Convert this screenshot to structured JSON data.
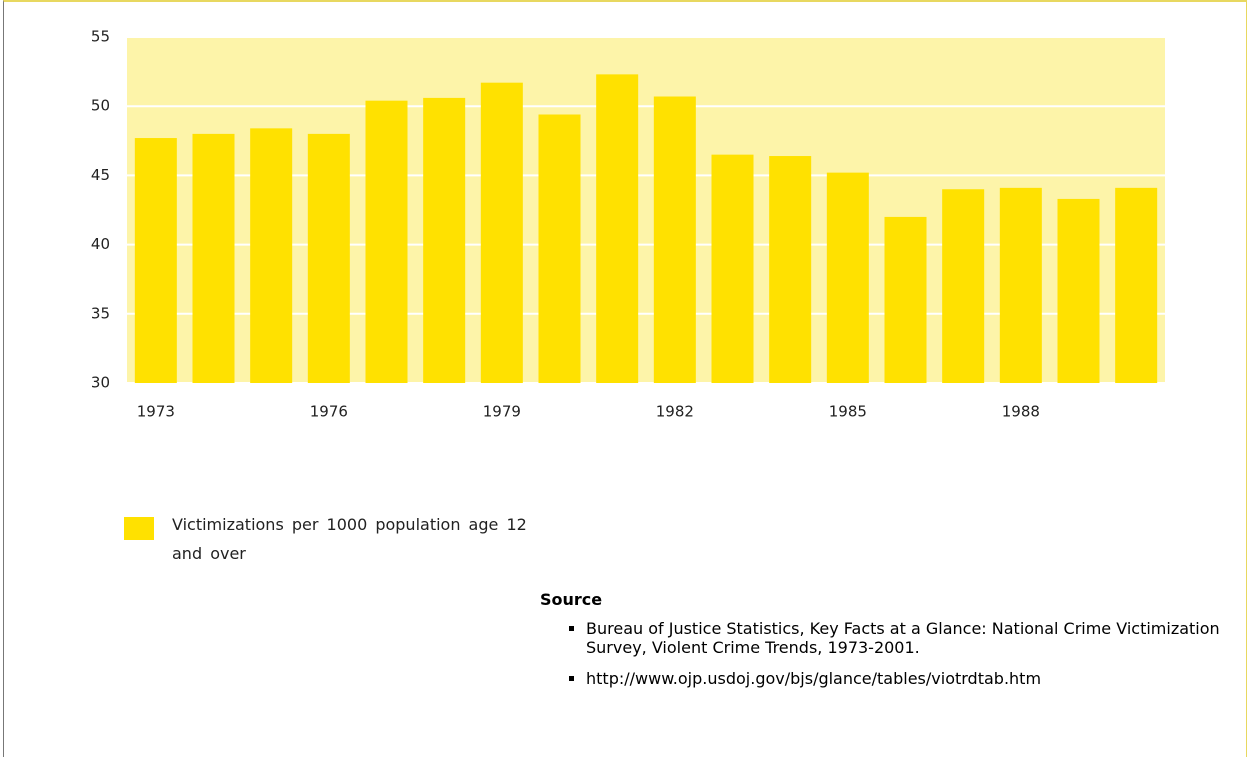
{
  "chart_data": {
    "type": "bar",
    "categories": [
      "1973",
      null,
      null,
      "1976",
      null,
      null,
      "1979",
      null,
      null,
      "1982",
      null,
      null,
      "1985",
      null,
      null,
      "1988",
      null,
      null
    ],
    "series": [
      {
        "name": "Victimizations per 1000 population age 12 and over",
        "color": "#ffe100",
        "values": [
          47.7,
          48.0,
          48.4,
          48.0,
          50.4,
          50.6,
          51.7,
          49.4,
          52.3,
          50.7,
          46.5,
          46.4,
          45.2,
          42.0,
          44.0,
          44.1,
          43.3,
          44.1
        ]
      }
    ],
    "ylim": [
      30,
      55
    ],
    "yticks": [
      30,
      35,
      40,
      45,
      50,
      55
    ],
    "grid": true,
    "background": "#fdf4a9"
  },
  "source": {
    "heading": "Source",
    "items": [
      "Bureau of Justice Statistics, Key Facts at a Glance:  National Crime Victimization Survey, Violent Crime Trends, 1973-2001.",
      "http://www.ojp.usdoj.gov/bjs/glance/tables/viotrdtab.htm"
    ]
  }
}
